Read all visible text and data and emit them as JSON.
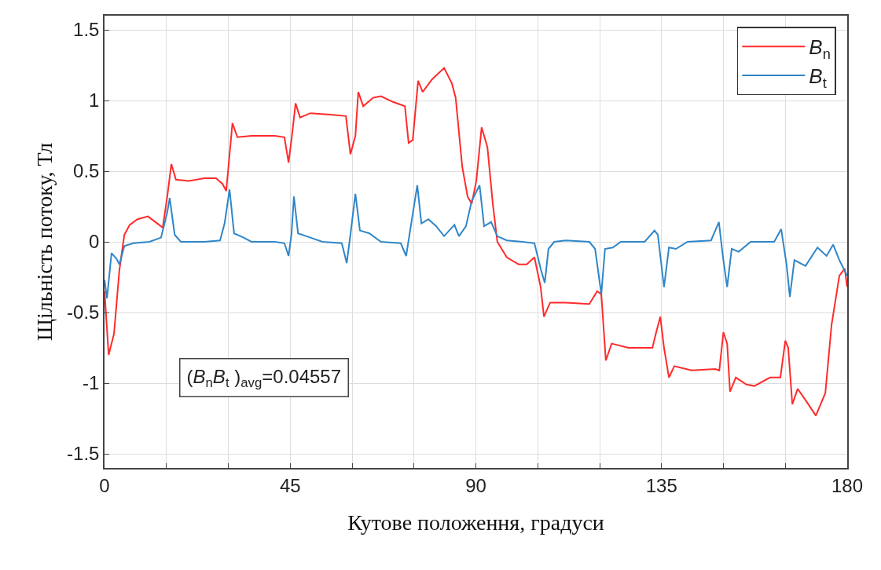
{
  "chart_data": {
    "type": "line",
    "xlabel": "Кутове положення, градуси",
    "ylabel": "Щільність потоку, Тл",
    "annotations": [
      "(B$_{n}$B$_{t}$ )$_{avg}$=0.04557"
    ],
    "xlim": [
      0,
      180
    ],
    "xticks": [
      0,
      {
        "value": 15,
        "label": null
      },
      {
        "value": 30,
        "label": null
      },
      45,
      {
        "value": 60,
        "label": null
      },
      {
        "value": 75,
        "label": null
      },
      90,
      {
        "value": 105,
        "label": null
      },
      {
        "value": 120,
        "label": null
      },
      135,
      {
        "value": 150,
        "label": null
      },
      {
        "value": 165,
        "label": null
      },
      180
    ],
    "ylim": [
      -1.6,
      1.6
    ],
    "yticks": [
      -1.5,
      -1,
      -0.5,
      0,
      0.5,
      1,
      1.5
    ],
    "grid": true,
    "legend": "top right",
    "series": [
      {
        "name": "B$_{n}$",
        "color": "#ff2b2b",
        "x": [
          0,
          1,
          2.3,
          3.6,
          4.8,
          6.1,
          8,
          10.5,
          12.8,
          14.1,
          15.2,
          16.2,
          17.3,
          20.4,
          24.2,
          27,
          28.6,
          29.5,
          31,
          32.2,
          35.6,
          41.3,
          43.6,
          44.6,
          45.3,
          46.3,
          47.4,
          49.9,
          54.7,
          58.5,
          59.6,
          60.8,
          61.5,
          62.7,
          65.1,
          67,
          69.9,
          72.8,
          73.7,
          74.7,
          76,
          77.1,
          79.4,
          82.3,
          84.2,
          85.1,
          86.7,
          88,
          89,
          90.1,
          91.4,
          92.8,
          94.1,
          95.2,
          97.5,
          100.4,
          102.3,
          104.2,
          105.7,
          106.5,
          108,
          111.8,
          117.5,
          119.4,
          120.4,
          121.5,
          122.9,
          127,
          132.8,
          133.7,
          134.7,
          135.6,
          136.8,
          138.1,
          142.3,
          148,
          149,
          150,
          150.9,
          151.6,
          153,
          155.6,
          157.5,
          161.3,
          163.8,
          165,
          165.7,
          166.7,
          168,
          169.9,
          172.4,
          174.7,
          176.2,
          178.1,
          179.4,
          180
        ],
        "values": [
          -0.35,
          -0.8,
          -0.65,
          -0.2,
          0.05,
          0.12,
          0.16,
          0.18,
          0.13,
          0.1,
          0.32,
          0.55,
          0.44,
          0.43,
          0.45,
          0.45,
          0.41,
          0.36,
          0.84,
          0.74,
          0.75,
          0.75,
          0.74,
          0.56,
          0.72,
          0.98,
          0.88,
          0.91,
          0.9,
          0.89,
          0.62,
          0.75,
          1.06,
          0.96,
          1.02,
          1.03,
          0.99,
          0.96,
          0.7,
          0.72,
          1.14,
          1.06,
          1.15,
          1.23,
          1.12,
          1.02,
          0.53,
          0.32,
          0.27,
          0.43,
          0.81,
          0.67,
          0.27,
          0,
          -0.11,
          -0.16,
          -0.16,
          -0.11,
          -0.32,
          -0.53,
          -0.43,
          -0.43,
          -0.44,
          -0.35,
          -0.37,
          -0.84,
          -0.72,
          -0.75,
          -0.75,
          -0.64,
          -0.53,
          -0.75,
          -0.96,
          -0.88,
          -0.91,
          -0.9,
          -0.91,
          -0.64,
          -0.72,
          -1.06,
          -0.96,
          -1.01,
          -1.02,
          -0.96,
          -0.96,
          -0.7,
          -0.75,
          -1.15,
          -1.04,
          -1.12,
          -1.23,
          -1.07,
          -0.59,
          -0.24,
          -0.19,
          -0.32
        ]
      },
      {
        "name": "B$_{t}$",
        "color": "#2f86c8",
        "x": [
          0,
          0.6,
          1.7,
          2.9,
          3.6,
          4.8,
          7,
          10.9,
          13.7,
          15.2,
          15.8,
          17,
          18.5,
          24.2,
          28,
          29.1,
          30.3,
          31.4,
          33.7,
          35.6,
          41.3,
          43.6,
          44.6,
          45.3,
          45.9,
          46.9,
          49.9,
          52.8,
          57.5,
          58.7,
          59.6,
          60.8,
          61.9,
          64.2,
          67,
          71.8,
          73.1,
          74.5,
          75.8,
          76.8,
          78.5,
          80.4,
          82.3,
          84.8,
          85.9,
          87.6,
          89,
          90.9,
          92,
          93.7,
          95.2,
          97.5,
          101.3,
          104.2,
          105.7,
          106.7,
          107.6,
          109,
          111.8,
          117.5,
          118.9,
          120.4,
          121.3,
          123.2,
          125.1,
          130.9,
          133.3,
          134.1,
          135.6,
          136.8,
          138.5,
          141.3,
          147,
          148.9,
          149.9,
          150.9,
          152,
          153.7,
          156.6,
          162.3,
          164,
          165.3,
          166.1,
          167.2,
          169.9,
          172.8,
          175,
          176.6,
          178.1,
          180
        ],
        "values": [
          -0.27,
          -0.4,
          -0.08,
          -0.12,
          -0.16,
          -0.03,
          -0.01,
          0,
          0.03,
          0.21,
          0.31,
          0.05,
          0,
          0,
          0.01,
          0.13,
          0.37,
          0.06,
          0.03,
          0,
          0,
          -0.01,
          -0.1,
          0.05,
          0.32,
          0.06,
          0.03,
          0,
          -0.01,
          -0.15,
          0.05,
          0.34,
          0.08,
          0.06,
          0,
          -0.01,
          -0.1,
          0.16,
          0.4,
          0.13,
          0.16,
          0.11,
          0.04,
          0.12,
          0.04,
          0.11,
          0.29,
          0.4,
          0.11,
          0.14,
          0.04,
          0.01,
          0,
          -0.01,
          -0.19,
          -0.29,
          -0.05,
          0,
          0.01,
          0,
          -0.05,
          -0.37,
          -0.05,
          -0.04,
          0,
          0,
          0.08,
          0.05,
          -0.32,
          -0.04,
          -0.05,
          0,
          0.01,
          0.14,
          -0.11,
          -0.32,
          -0.05,
          -0.07,
          0,
          0,
          0.09,
          -0.16,
          -0.39,
          -0.13,
          -0.17,
          -0.04,
          -0.1,
          -0.02,
          -0.13,
          -0.24
        ]
      }
    ]
  }
}
